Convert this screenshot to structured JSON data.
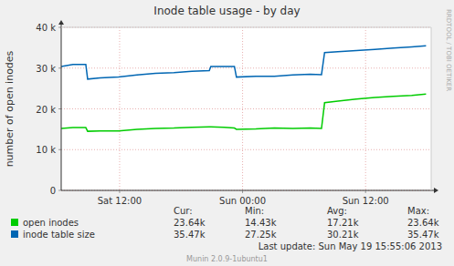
{
  "chart_data": {
    "type": "line",
    "title": "Inode table usage - by day",
    "y_label": "number of open inodes",
    "x": [
      6.3,
      7.45,
      8.7,
      8.88,
      10.1,
      11.9,
      13.7,
      15.5,
      17.3,
      19.05,
      20.75,
      20.9,
      22.2,
      23.2,
      23.4,
      25.3,
      27.1,
      28.9,
      30.6,
      31.7,
      32.0,
      33.3,
      35.1,
      36.9,
      38.7,
      40.5,
      41.9
    ],
    "series": [
      {
        "name": "open inodes",
        "color": "#00cc00",
        "values": [
          15200,
          15400,
          15400,
          14500,
          14600,
          14600,
          15000,
          15200,
          15300,
          15500,
          15600,
          15600,
          15500,
          15300,
          15000,
          15100,
          15300,
          15200,
          15300,
          15200,
          21500,
          21900,
          22400,
          22800,
          23100,
          23300,
          23640
        ],
        "stats": [
          "23.64k",
          "14.43k",
          "17.21k",
          "23.64k"
        ]
      },
      {
        "name": "inode table size",
        "color": "#0066b3",
        "values": [
          30400,
          30900,
          30900,
          27300,
          27600,
          27800,
          28300,
          28700,
          28900,
          29200,
          29400,
          30400,
          30400,
          30400,
          27800,
          28000,
          28000,
          28300,
          28500,
          28400,
          33800,
          34000,
          34300,
          34600,
          34900,
          35200,
          35470
        ],
        "stats": [
          "35.47k",
          "27.25k",
          "30.21k",
          "35.47k"
        ]
      }
    ],
    "stats_header": [
      "Cur:",
      "Min:",
      "Avg:",
      "Max:"
    ],
    "xlim": [
      6.3,
      42.4
    ],
    "xticks": [
      {
        "value": 12,
        "label": "Sat 12:00"
      },
      {
        "value": 24,
        "label": "Sun 00:00"
      },
      {
        "value": 36,
        "label": "Sun 12:00"
      }
    ],
    "ylim": [
      0,
      40000
    ],
    "yticks": [
      0,
      {
        "value": 10000,
        "label": "10 k"
      },
      {
        "value": 20000,
        "label": "20 k"
      },
      {
        "value": 30000,
        "label": "30 k"
      },
      {
        "value": 40000,
        "label": "40 k"
      }
    ],
    "grid": true,
    "legend": "bottom",
    "annotations": [
      "Last update: Sun May 19 15:55:06 2013",
      "Munin 2.0.9-1ubuntu1",
      "RRDTOOL / TOBI OETIKER"
    ]
  }
}
